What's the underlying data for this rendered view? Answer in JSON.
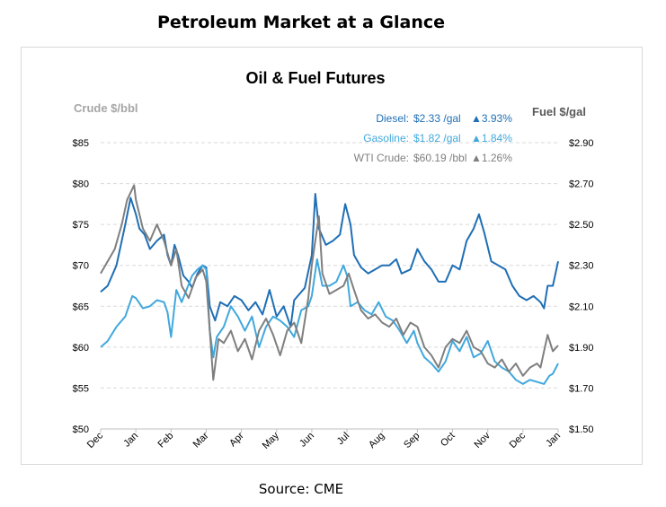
{
  "page": {
    "title": "Petroleum Market at a Glance",
    "source": "Source: CME"
  },
  "colors": {
    "diesel": "#1f6fb5",
    "gasoline": "#41a8dd",
    "wti": "#7f7f7f",
    "axis_label": "#a6a6a6",
    "grid": "#d9d9d9"
  },
  "chart_data": {
    "type": "line",
    "title": "Oil & Fuel Futures",
    "y_left_label": "Crude $/bbl",
    "y_right_label": "Fuel $/gal",
    "y_left_range": [
      50,
      85
    ],
    "y_right_range": [
      1.5,
      2.9
    ],
    "y_left_ticks": [
      "$85",
      "$80",
      "$75",
      "$70",
      "$65",
      "$60",
      "$55",
      "$50"
    ],
    "y_right_ticks": [
      "$2.90",
      "$2.70",
      "$2.50",
      "$2.30",
      "$2.10",
      "$1.90",
      "$1.70",
      "$1.50"
    ],
    "x_ticks": [
      "Dec",
      "Jan",
      "Feb",
      "Mar",
      "Apr",
      "May",
      "Jun",
      "Jul",
      "Aug",
      "Sep",
      "Oct",
      "Nov",
      "Dec",
      "Jan"
    ],
    "grid": "horizontal",
    "legend": [
      {
        "label": "Diesel:",
        "value": "$2.33 /gal",
        "change": "▲3.93%"
      },
      {
        "label": "Gasoline:",
        "value": "$1.82 /gal",
        "change": "▲1.84%"
      },
      {
        "label": "WTI Crude:",
        "value": "$60.19 /bbl",
        "change": "▲1.26%"
      }
    ],
    "series": [
      {
        "name": "Diesel",
        "axis": "right",
        "points": [
          [
            0,
            2.17
          ],
          [
            0.2,
            2.2
          ],
          [
            0.45,
            2.3
          ],
          [
            0.7,
            2.5
          ],
          [
            0.85,
            2.63
          ],
          [
            1.0,
            2.55
          ],
          [
            1.1,
            2.48
          ],
          [
            1.25,
            2.45
          ],
          [
            1.4,
            2.38
          ],
          [
            1.6,
            2.42
          ],
          [
            1.8,
            2.45
          ],
          [
            1.9,
            2.35
          ],
          [
            2.0,
            2.3
          ],
          [
            2.1,
            2.4
          ],
          [
            2.2,
            2.35
          ],
          [
            2.35,
            2.25
          ],
          [
            2.5,
            2.22
          ],
          [
            2.6,
            2.19
          ],
          [
            2.75,
            2.26
          ],
          [
            2.9,
            2.3
          ],
          [
            3.0,
            2.29
          ],
          [
            3.1,
            2.1
          ],
          [
            3.25,
            2.03
          ],
          [
            3.4,
            2.12
          ],
          [
            3.6,
            2.1
          ],
          [
            3.8,
            2.15
          ],
          [
            4.0,
            2.13
          ],
          [
            4.2,
            2.08
          ],
          [
            4.4,
            2.12
          ],
          [
            4.6,
            2.06
          ],
          [
            4.8,
            2.18
          ],
          [
            5.0,
            2.05
          ],
          [
            5.2,
            2.1
          ],
          [
            5.4,
            2.0
          ],
          [
            5.5,
            2.13
          ],
          [
            5.8,
            2.19
          ],
          [
            6.0,
            2.35
          ],
          [
            6.1,
            2.65
          ],
          [
            6.2,
            2.48
          ],
          [
            6.4,
            2.4
          ],
          [
            6.6,
            2.42
          ],
          [
            6.8,
            2.45
          ],
          [
            6.95,
            2.6
          ],
          [
            7.1,
            2.5
          ],
          [
            7.2,
            2.35
          ],
          [
            7.4,
            2.29
          ],
          [
            7.6,
            2.26
          ],
          [
            7.8,
            2.28
          ],
          [
            8.0,
            2.3
          ],
          [
            8.2,
            2.3
          ],
          [
            8.4,
            2.33
          ],
          [
            8.55,
            2.26
          ],
          [
            8.8,
            2.28
          ],
          [
            9.0,
            2.38
          ],
          [
            9.2,
            2.32
          ],
          [
            9.4,
            2.28
          ],
          [
            9.6,
            2.22
          ],
          [
            9.8,
            2.22
          ],
          [
            10.0,
            2.3
          ],
          [
            10.2,
            2.28
          ],
          [
            10.4,
            2.42
          ],
          [
            10.6,
            2.48
          ],
          [
            10.75,
            2.55
          ],
          [
            10.9,
            2.46
          ],
          [
            11.1,
            2.32
          ],
          [
            11.3,
            2.3
          ],
          [
            11.5,
            2.28
          ],
          [
            11.7,
            2.2
          ],
          [
            11.9,
            2.15
          ],
          [
            12.1,
            2.13
          ],
          [
            12.3,
            2.15
          ],
          [
            12.5,
            2.12
          ],
          [
            12.6,
            2.09
          ],
          [
            12.7,
            2.2
          ],
          [
            12.85,
            2.2
          ],
          [
            13.0,
            2.32
          ]
        ]
      },
      {
        "name": "Gasoline",
        "axis": "right",
        "points": [
          [
            0,
            1.9
          ],
          [
            0.2,
            1.93
          ],
          [
            0.45,
            2.0
          ],
          [
            0.7,
            2.05
          ],
          [
            0.9,
            2.15
          ],
          [
            1.0,
            2.14
          ],
          [
            1.2,
            2.09
          ],
          [
            1.4,
            2.1
          ],
          [
            1.6,
            2.13
          ],
          [
            1.8,
            2.12
          ],
          [
            1.9,
            2.07
          ],
          [
            2.0,
            1.95
          ],
          [
            2.15,
            2.18
          ],
          [
            2.3,
            2.12
          ],
          [
            2.6,
            2.25
          ],
          [
            2.75,
            2.28
          ],
          [
            2.9,
            2.3
          ],
          [
            3.0,
            2.28
          ],
          [
            3.1,
            1.98
          ],
          [
            3.2,
            1.85
          ],
          [
            3.3,
            1.95
          ],
          [
            3.5,
            2.0
          ],
          [
            3.7,
            2.1
          ],
          [
            3.9,
            2.05
          ],
          [
            4.1,
            1.98
          ],
          [
            4.3,
            2.05
          ],
          [
            4.5,
            1.9
          ],
          [
            4.7,
            2.0
          ],
          [
            4.9,
            2.05
          ],
          [
            5.1,
            2.03
          ],
          [
            5.3,
            2.0
          ],
          [
            5.5,
            1.95
          ],
          [
            5.7,
            2.08
          ],
          [
            5.9,
            2.1
          ],
          [
            6.0,
            2.15
          ],
          [
            6.15,
            2.33
          ],
          [
            6.3,
            2.2
          ],
          [
            6.5,
            2.2
          ],
          [
            6.7,
            2.22
          ],
          [
            6.9,
            2.3
          ],
          [
            7.0,
            2.25
          ],
          [
            7.1,
            2.1
          ],
          [
            7.3,
            2.12
          ],
          [
            7.5,
            2.08
          ],
          [
            7.7,
            2.06
          ],
          [
            7.9,
            2.12
          ],
          [
            8.1,
            2.05
          ],
          [
            8.3,
            2.03
          ],
          [
            8.5,
            1.98
          ],
          [
            8.7,
            1.92
          ],
          [
            8.9,
            1.98
          ],
          [
            9.0,
            1.92
          ],
          [
            9.2,
            1.85
          ],
          [
            9.4,
            1.82
          ],
          [
            9.6,
            1.78
          ],
          [
            9.8,
            1.83
          ],
          [
            10.0,
            1.93
          ],
          [
            10.2,
            1.88
          ],
          [
            10.4,
            1.95
          ],
          [
            10.6,
            1.85
          ],
          [
            10.8,
            1.87
          ],
          [
            11.0,
            1.93
          ],
          [
            11.2,
            1.83
          ],
          [
            11.4,
            1.8
          ],
          [
            11.6,
            1.78
          ],
          [
            11.8,
            1.74
          ],
          [
            12.0,
            1.72
          ],
          [
            12.2,
            1.74
          ],
          [
            12.4,
            1.73
          ],
          [
            12.6,
            1.72
          ],
          [
            12.75,
            1.76
          ],
          [
            12.85,
            1.77
          ],
          [
            13.0,
            1.82
          ]
        ]
      },
      {
        "name": "WTI Crude",
        "axis": "left",
        "points": [
          [
            0,
            69.0
          ],
          [
            0.2,
            70.5
          ],
          [
            0.4,
            72.0
          ],
          [
            0.6,
            75.0
          ],
          [
            0.75,
            78.0
          ],
          [
            0.95,
            79.8
          ],
          [
            1.0,
            78.0
          ],
          [
            1.2,
            74.5
          ],
          [
            1.4,
            73.0
          ],
          [
            1.6,
            75.0
          ],
          [
            1.8,
            73.0
          ],
          [
            2.0,
            70.0
          ],
          [
            2.15,
            72.0
          ],
          [
            2.3,
            67.5
          ],
          [
            2.5,
            66.0
          ],
          [
            2.7,
            68.5
          ],
          [
            2.9,
            69.5
          ],
          [
            3.0,
            68.0
          ],
          [
            3.1,
            62.0
          ],
          [
            3.2,
            56.0
          ],
          [
            3.35,
            61.0
          ],
          [
            3.5,
            60.5
          ],
          [
            3.7,
            62.0
          ],
          [
            3.9,
            59.5
          ],
          [
            4.1,
            61.0
          ],
          [
            4.3,
            58.5
          ],
          [
            4.5,
            62.0
          ],
          [
            4.7,
            63.5
          ],
          [
            4.9,
            61.5
          ],
          [
            5.1,
            59.0
          ],
          [
            5.3,
            62.0
          ],
          [
            5.5,
            63.0
          ],
          [
            5.7,
            60.5
          ],
          [
            5.9,
            66.0
          ],
          [
            6.0,
            70.0
          ],
          [
            6.1,
            73.0
          ],
          [
            6.2,
            76.0
          ],
          [
            6.3,
            69.0
          ],
          [
            6.5,
            66.5
          ],
          [
            6.7,
            67.0
          ],
          [
            6.9,
            67.5
          ],
          [
            7.05,
            69.0
          ],
          [
            7.2,
            67.0
          ],
          [
            7.4,
            64.5
          ],
          [
            7.6,
            63.5
          ],
          [
            7.8,
            64.0
          ],
          [
            8.0,
            63.0
          ],
          [
            8.2,
            62.5
          ],
          [
            8.4,
            63.5
          ],
          [
            8.6,
            61.5
          ],
          [
            8.8,
            63.0
          ],
          [
            9.0,
            62.5
          ],
          [
            9.2,
            60.0
          ],
          [
            9.4,
            59.0
          ],
          [
            9.6,
            57.5
          ],
          [
            9.8,
            60.0
          ],
          [
            10.0,
            61.0
          ],
          [
            10.2,
            60.5
          ],
          [
            10.4,
            62.0
          ],
          [
            10.6,
            60.0
          ],
          [
            10.8,
            59.5
          ],
          [
            11.0,
            58.0
          ],
          [
            11.2,
            57.5
          ],
          [
            11.4,
            58.5
          ],
          [
            11.6,
            57.0
          ],
          [
            11.8,
            58.0
          ],
          [
            12.0,
            56.5
          ],
          [
            12.2,
            57.5
          ],
          [
            12.4,
            58.0
          ],
          [
            12.5,
            57.5
          ],
          [
            12.6,
            59.5
          ],
          [
            12.7,
            61.5
          ],
          [
            12.85,
            59.5
          ],
          [
            13.0,
            60.2
          ]
        ]
      }
    ]
  }
}
